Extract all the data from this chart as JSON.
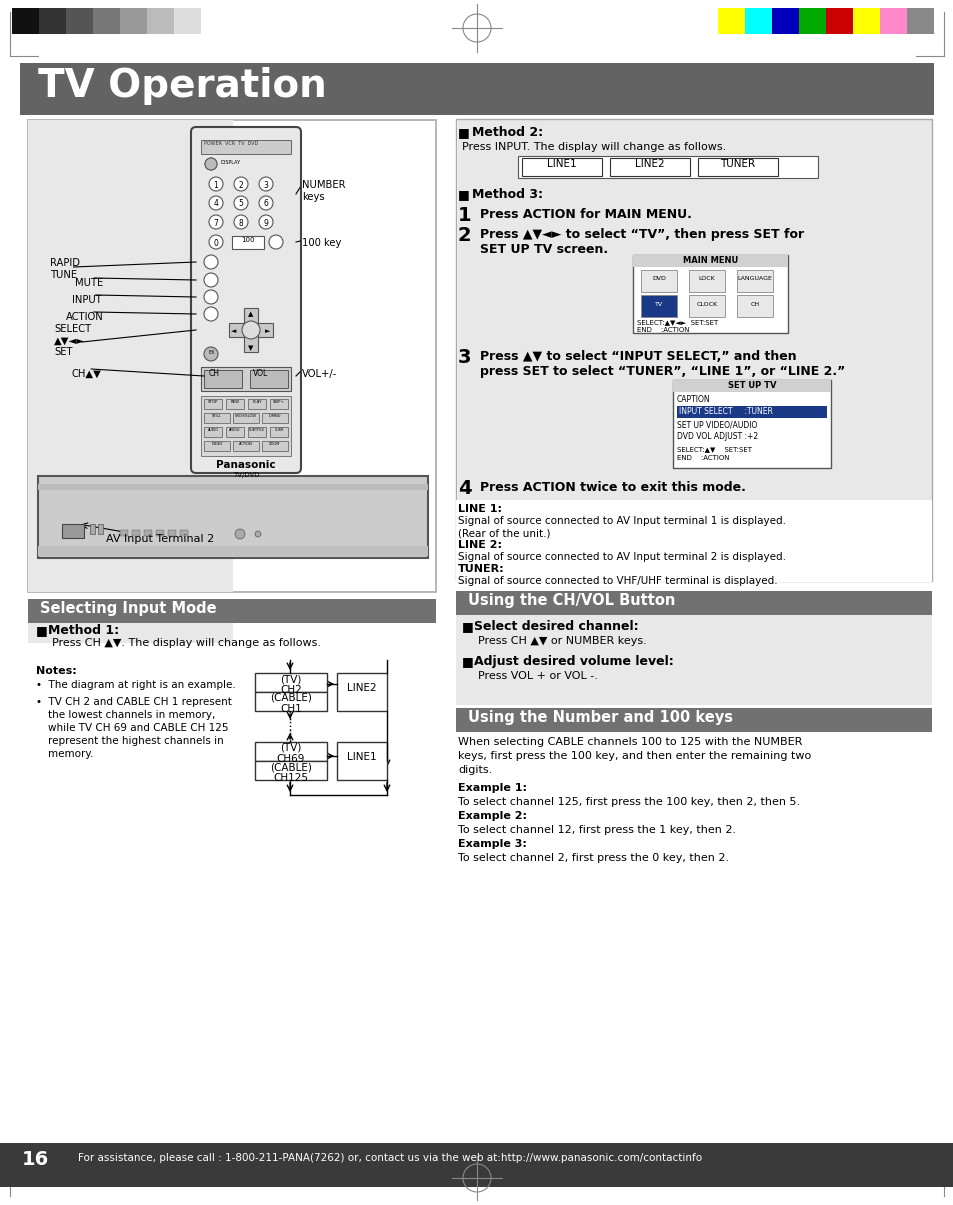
{
  "title": "TV Operation",
  "title_bg": "#636363",
  "title_color": "#ffffff",
  "page_bg": "#ffffff",
  "page_number": "16",
  "footer_text": "For assistance, please call : 1-800-211-PANA(7262) or, contact us via the web at:http://www.panasonic.com/contactinfo",
  "footer_bg": "#3a3a3a",
  "footer_color": "#ffffff",
  "section1_title": "Selecting Input Mode",
  "section2_title": "Using the CH/VOL Button",
  "section3_title": "Using the Number and 100 keys",
  "section_bg": "#717171",
  "section_color": "#ffffff",
  "flow_items": [
    "LINE1",
    "LINE2",
    "TUNER"
  ],
  "color_bars_left": [
    "#111111",
    "#333333",
    "#555555",
    "#777777",
    "#999999",
    "#bbbbbb",
    "#dddddd",
    "#ffffff"
  ],
  "color_bars_right": [
    "#ffff00",
    "#00ffff",
    "#0000bb",
    "#00aa00",
    "#cc0000",
    "#ffff00",
    "#ff88cc",
    "#888888"
  ],
  "gray_bg": "#e8e8e8",
  "panel_bg": "#f0f0f0"
}
